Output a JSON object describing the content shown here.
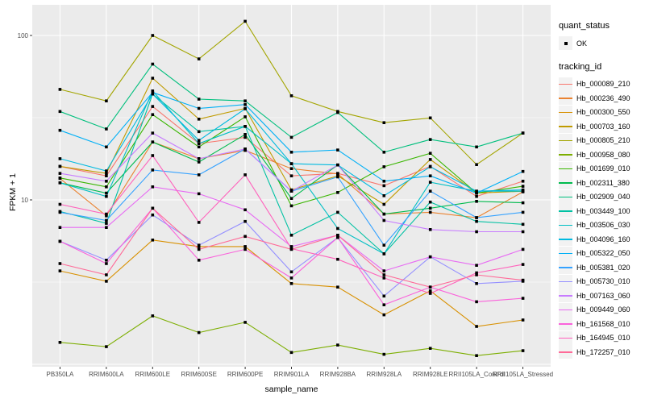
{
  "figure": {
    "background": "#FFFFFF",
    "panel_background": "#EBEBEB",
    "grid_color": "#FFFFFF",
    "axis_text_color": "#4D4D4D",
    "tick_color": "#333333",
    "marker_color": "#000000"
  },
  "chart_data": {
    "type": "line",
    "title": "",
    "xlabel": "sample_name",
    "ylabel": "FPKM + 1",
    "y_scale": "log10",
    "y_ticks": [
      10,
      100
    ],
    "y_minor_ticks": [
      3.1623,
      31.623
    ],
    "y_grid_major": [
      1,
      10,
      100
    ],
    "ylim": [
      1,
      153
    ],
    "grid": true,
    "legend_position": "right",
    "marker_shape": "square-point",
    "categories": [
      "PB350LA",
      "RRIM600LA",
      "RRIM600LE",
      "RRIM600SE",
      "RRIM600PE",
      "RRIM901LA",
      "RRIM928BA",
      "RRIM928LA",
      "RRIM928LE",
      "RRII105LA_Control",
      "RRII105LA_Stressed"
    ],
    "legend": {
      "quant_title": "quant_status",
      "quant_items": [
        {
          "label": "OK"
        }
      ],
      "series_title": "tracking_id"
    },
    "series": [
      {
        "name": "Hb_000089_210",
        "color": "#F8766D",
        "values": [
          16,
          14,
          37,
          22,
          24,
          14,
          14.5,
          12.2,
          16,
          10.5,
          13
        ]
      },
      {
        "name": "Hb_000236_490",
        "color": "#EA8331",
        "values": [
          13.5,
          8,
          22.5,
          17.8,
          20,
          15.5,
          14.4,
          8.2,
          8.4,
          7.8,
          11.2
        ]
      },
      {
        "name": "Hb_000300_550",
        "color": "#D89000",
        "values": [
          3.7,
          3.2,
          5.7,
          5.2,
          5.2,
          3.1,
          2.95,
          2.0,
          2.8,
          1.7,
          1.86
        ]
      },
      {
        "name": "Hb_000703_160",
        "color": "#C09B00",
        "values": [
          16,
          14.5,
          55,
          31,
          36,
          11.5,
          14,
          9.4,
          17.6,
          11,
          11.3
        ]
      },
      {
        "name": "Hb_000805_210",
        "color": "#A3A500",
        "values": [
          47,
          40,
          100,
          72,
          122,
          43,
          34.5,
          29.5,
          31.5,
          16.4,
          25.5
        ]
      },
      {
        "name": "Hb_000958_080",
        "color": "#7CAE00",
        "values": [
          1.36,
          1.28,
          1.97,
          1.56,
          1.8,
          1.18,
          1.31,
          1.15,
          1.25,
          1.13,
          1.21
        ]
      },
      {
        "name": "Hb_001699_010",
        "color": "#39B600",
        "values": [
          13.6,
          12,
          33,
          21,
          32,
          9.2,
          11.1,
          15.9,
          19.2,
          11,
          12.1
        ]
      },
      {
        "name": "Hb_002311_380",
        "color": "#00BB4E",
        "values": [
          12.7,
          11,
          22.5,
          17,
          25,
          10.2,
          16.3,
          8.2,
          8.9,
          9.8,
          9.6
        ]
      },
      {
        "name": "Hb_002909_040",
        "color": "#00BF7D",
        "values": [
          34.5,
          27,
          67,
          41,
          40,
          24,
          34,
          19.5,
          23.3,
          21,
          25.5
        ]
      },
      {
        "name": "Hb_003449_100",
        "color": "#00C1A3",
        "values": [
          8.5,
          7.2,
          44,
          26,
          28,
          6.1,
          8.4,
          4.7,
          9.7,
          7.4,
          7.1
        ]
      },
      {
        "name": "Hb_003506_030",
        "color": "#00BFC4",
        "values": [
          12.7,
          10.5,
          46,
          22,
          28,
          16.6,
          6.7,
          4.7,
          12.8,
          11.3,
          11.3
        ]
      },
      {
        "name": "Hb_004096_160",
        "color": "#00BAE0",
        "values": [
          17.8,
          15,
          44,
          23,
          35.8,
          16.6,
          16.3,
          10.6,
          15.9,
          11.3,
          11.5
        ]
      },
      {
        "name": "Hb_005322_050",
        "color": "#00B0F6",
        "values": [
          26.5,
          21,
          45,
          36,
          38,
          19.5,
          20.1,
          13,
          14,
          11,
          14.9
        ]
      },
      {
        "name": "Hb_005381_020",
        "color": "#35A2FF",
        "values": [
          8.4,
          7.5,
          15.2,
          14.2,
          20.4,
          11.3,
          13.8,
          5.3,
          11.3,
          7.8,
          8.4
        ]
      },
      {
        "name": "Hb_005730_010",
        "color": "#9590FF",
        "values": [
          5.6,
          4.3,
          8.1,
          5.3,
          7.4,
          3.65,
          5.9,
          2.6,
          4.5,
          3.1,
          3.2
        ]
      },
      {
        "name": "Hb_007163_060",
        "color": "#C77CFF",
        "values": [
          14.5,
          13,
          25.5,
          17.8,
          20.4,
          11.3,
          16.3,
          7.5,
          6.6,
          6.4,
          6.4
        ]
      },
      {
        "name": "Hb_009449_060",
        "color": "#E76BF3",
        "values": [
          6.8,
          6.8,
          12,
          10.9,
          8.7,
          5.2,
          6.1,
          3.7,
          4.5,
          4.0,
          5.0
        ]
      },
      {
        "name": "Hb_161568_010",
        "color": "#FA62DB",
        "values": [
          5.6,
          4.1,
          8.9,
          4.3,
          5.0,
          3.35,
          5.9,
          2.3,
          2.95,
          2.4,
          2.52
        ]
      },
      {
        "name": "Hb_164945_010",
        "color": "#FF62BC",
        "values": [
          9.4,
          8.2,
          18.6,
          7.3,
          14.2,
          5.05,
          4.35,
          3.35,
          2.7,
          3.6,
          4.05
        ]
      },
      {
        "name": "Hb_172257_010",
        "color": "#FF6A98",
        "values": [
          4.1,
          3.5,
          8.9,
          5.0,
          6.0,
          5.0,
          6.1,
          3.5,
          2.95,
          3.5,
          3.25
        ]
      }
    ]
  }
}
